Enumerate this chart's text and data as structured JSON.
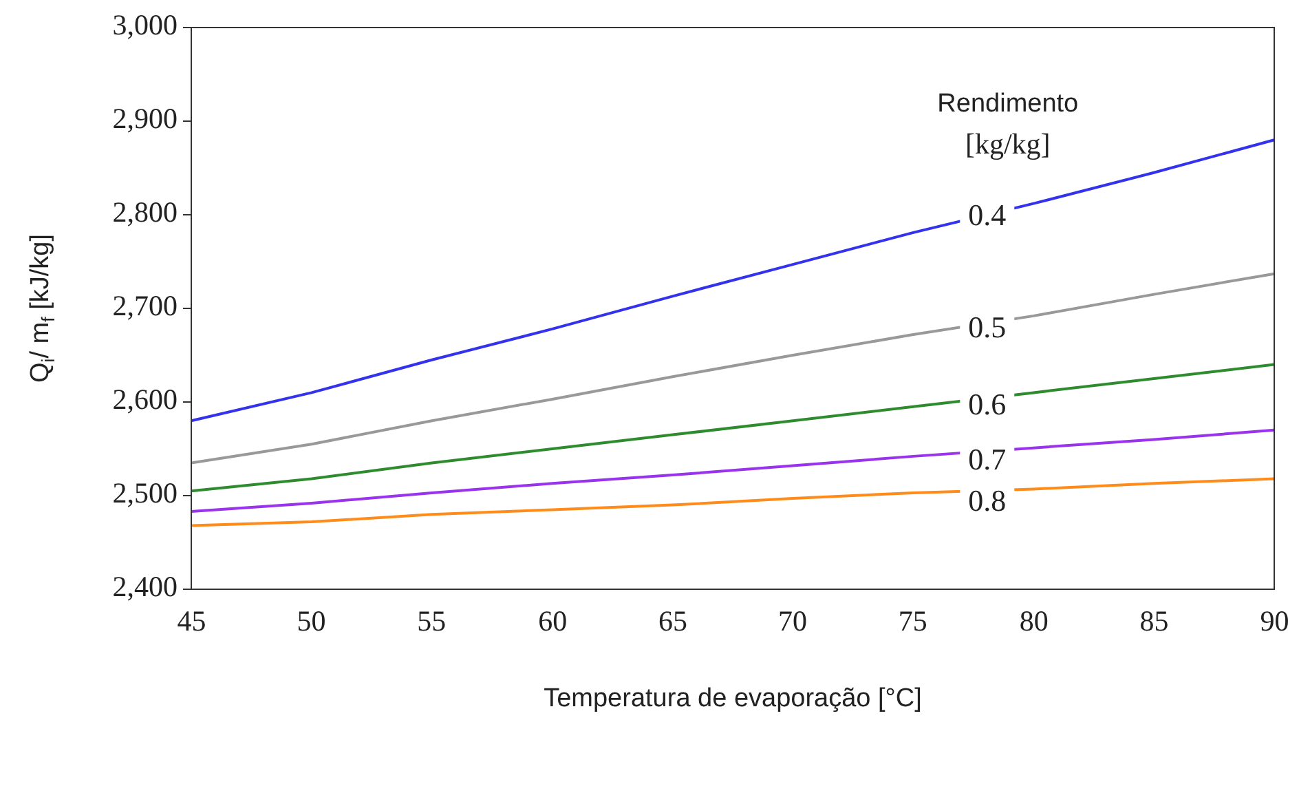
{
  "chart_data": {
    "type": "line",
    "xlabel": "Temperatura de evaporação [°C]",
    "ylabel": "Q$_{i}$/ m$_{f}$ [kJ/kg]",
    "legend_title": "Rendimento\n[kg/kg]",
    "legend": false,
    "grid": false,
    "marker": "none",
    "line_style": "solid",
    "x": [
      45,
      50,
      55,
      60,
      65,
      70,
      75,
      80,
      85,
      90
    ],
    "xlim": [
      45,
      90
    ],
    "xticks": [
      45,
      50,
      55,
      60,
      65,
      70,
      75,
      80,
      85,
      90
    ],
    "ylim": [
      2400,
      3000
    ],
    "yticks": [
      {
        "value": 2400,
        "label": "2,400"
      },
      {
        "value": 2500,
        "label": "2,500"
      },
      {
        "value": 2600,
        "label": "2,600"
      },
      {
        "value": 2700,
        "label": "2,700"
      },
      {
        "value": 2800,
        "label": "2,800"
      },
      {
        "value": 2900,
        "label": "2,900"
      },
      {
        "value": 3000,
        "label": "3,000"
      }
    ],
    "series": [
      {
        "name": "0.4",
        "color": "#3333ee",
        "values": [
          2580,
          2610,
          2645,
          2678,
          2713,
          2747,
          2781,
          2812,
          2845,
          2880
        ]
      },
      {
        "name": "0.5",
        "color": "#999999",
        "values": [
          2535,
          2555,
          2580,
          2603,
          2627,
          2650,
          2672,
          2692,
          2715,
          2737
        ]
      },
      {
        "name": "0.6",
        "color": "#2e8b2e",
        "values": [
          2505,
          2518,
          2535,
          2550,
          2565,
          2580,
          2595,
          2610,
          2625,
          2640
        ]
      },
      {
        "name": "0.7",
        "color": "#9933ee",
        "values": [
          2483,
          2492,
          2503,
          2513,
          2522,
          2532,
          2542,
          2551,
          2560,
          2570
        ]
      },
      {
        "name": "0.8",
        "color": "#ff8c1a",
        "values": [
          2468,
          2472,
          2480,
          2485,
          2490,
          2497,
          2503,
          2507,
          2513,
          2518
        ]
      }
    ]
  }
}
